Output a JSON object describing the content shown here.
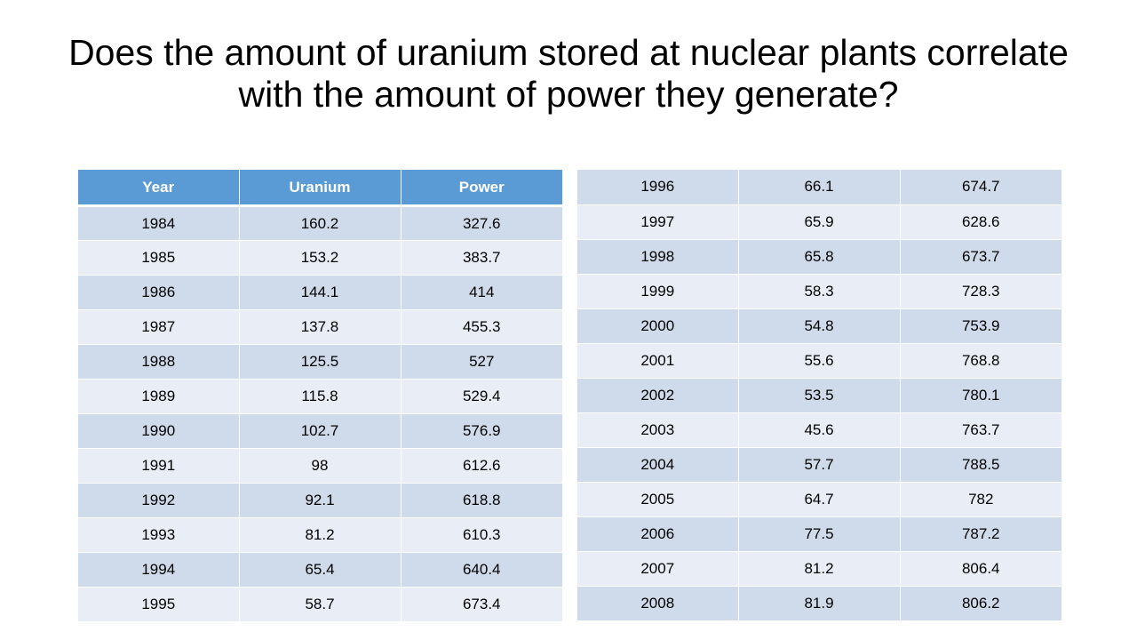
{
  "slide": {
    "title": "Does the amount of uranium stored at nuclear plants correlate with the amount of power they generate?"
  },
  "colors": {
    "header_bg": "#5b9bd5",
    "band_dark": "#cfdaeb",
    "band_light": "#e9eef6"
  },
  "table_left": {
    "headers": [
      "Year",
      "Uranium",
      "Power"
    ],
    "rows": [
      [
        "1984",
        "160.2",
        "327.6"
      ],
      [
        "1985",
        "153.2",
        "383.7"
      ],
      [
        "1986",
        "144.1",
        "414"
      ],
      [
        "1987",
        "137.8",
        "455.3"
      ],
      [
        "1988",
        "125.5",
        "527"
      ],
      [
        "1989",
        "115.8",
        "529.4"
      ],
      [
        "1990",
        "102.7",
        "576.9"
      ],
      [
        "1991",
        "98",
        "612.6"
      ],
      [
        "1992",
        "92.1",
        "618.8"
      ],
      [
        "1993",
        "81.2",
        "610.3"
      ],
      [
        "1994",
        "65.4",
        "640.4"
      ],
      [
        "1995",
        "58.7",
        "673.4"
      ]
    ]
  },
  "table_right": {
    "rows": [
      [
        "1996",
        "66.1",
        "674.7"
      ],
      [
        "1997",
        "65.9",
        "628.6"
      ],
      [
        "1998",
        "65.8",
        "673.7"
      ],
      [
        "1999",
        "58.3",
        "728.3"
      ],
      [
        "2000",
        "54.8",
        "753.9"
      ],
      [
        "2001",
        "55.6",
        "768.8"
      ],
      [
        "2002",
        "53.5",
        "780.1"
      ],
      [
        "2003",
        "45.6",
        "763.7"
      ],
      [
        "2004",
        "57.7",
        "788.5"
      ],
      [
        "2005",
        "64.7",
        "782"
      ],
      [
        "2006",
        "77.5",
        "787.2"
      ],
      [
        "2007",
        "81.2",
        "806.4"
      ],
      [
        "2008",
        "81.9",
        "806.2"
      ]
    ]
  }
}
